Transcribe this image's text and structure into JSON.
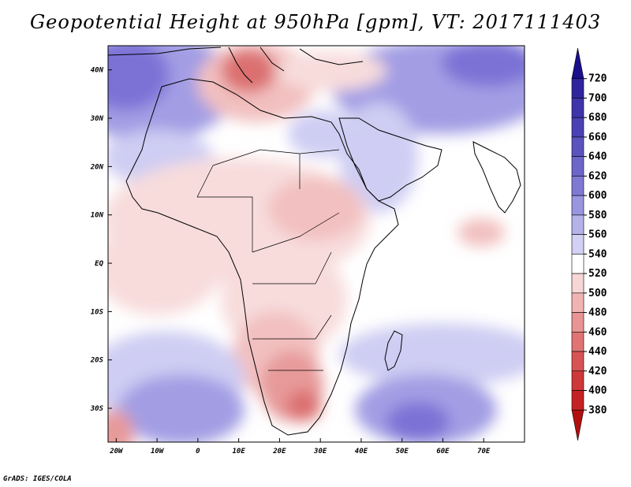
{
  "title": "Geopotential Height at 950hPa [gpm], VT: 2017111403",
  "credit": "GrADS: IGES/COLA",
  "map": {
    "lon_range": [
      -22,
      80
    ],
    "lat_range": [
      -37,
      45
    ],
    "lat_labels": [
      {
        "lat": 40,
        "text": "40N"
      },
      {
        "lat": 30,
        "text": "30N"
      },
      {
        "lat": 20,
        "text": "20N"
      },
      {
        "lat": 10,
        "text": "10N"
      },
      {
        "lat": 0,
        "text": "EQ"
      },
      {
        "lat": -10,
        "text": "10S"
      },
      {
        "lat": -20,
        "text": "20S"
      },
      {
        "lat": -30,
        "text": "30S"
      }
    ],
    "lon_labels": [
      {
        "lon": -20,
        "text": "20W"
      },
      {
        "lon": -10,
        "text": "10W"
      },
      {
        "lon": 0,
        "text": "0"
      },
      {
        "lon": 10,
        "text": "10E"
      },
      {
        "lon": 20,
        "text": "20E"
      },
      {
        "lon": 30,
        "text": "30E"
      },
      {
        "lon": 40,
        "text": "40E"
      },
      {
        "lon": 50,
        "text": "50E"
      },
      {
        "lon": 60,
        "text": "60E"
      },
      {
        "lon": 70,
        "text": "70E"
      }
    ]
  },
  "colorbar": {
    "levels": [
      "720",
      "700",
      "680",
      "660",
      "640",
      "620",
      "600",
      "580",
      "560",
      "540",
      "520",
      "500",
      "480",
      "460",
      "440",
      "420",
      "400",
      "380"
    ],
    "colors": [
      "#1a0f8c",
      "#2e259e",
      "#3e35aa",
      "#4a42b4",
      "#5b54bf",
      "#6d66c9",
      "#8079d4",
      "#9a95df",
      "#b5b1e9",
      "#d2d0f3",
      "#ffffff",
      "#f7d6d6",
      "#f0b4b4",
      "#e89494",
      "#e07474",
      "#d85454",
      "#cf3838",
      "#c42222",
      "#b30f0f"
    ]
  },
  "field_colors": {
    "blue_dark": "#7c72d6",
    "blue_mid": "#a39ee4",
    "blue_light": "#cfcdf3",
    "neutral": "#ffffff",
    "pink_light": "#f8dcdc",
    "pink_mid": "#f2c0c0",
    "red_mid": "#e79a9a",
    "red_dark": "#dc6f6f"
  }
}
